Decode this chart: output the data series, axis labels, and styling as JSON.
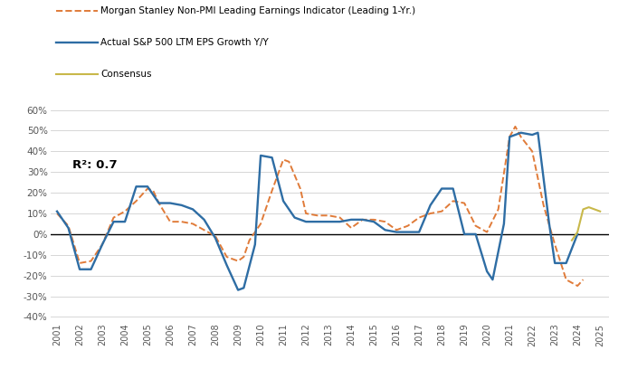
{
  "title": "",
  "legend_ms": "Morgan Stanley Non-PMI Leading Earnings Indicator (Leading 1-Yr.)",
  "legend_sp": "Actual S&P 500 LTM EPS Growth Y/Y",
  "legend_cons": "Consensus",
  "r2_label": "R²: 0.7",
  "ms_x": [
    2001,
    2001.5,
    2002,
    2002.5,
    2003,
    2003.5,
    2004,
    2004.5,
    2005,
    2005.25,
    2005.5,
    2006,
    2006.5,
    2007,
    2007.5,
    2008,
    2008.5,
    2009,
    2009.25,
    2009.5,
    2010,
    2010.5,
    2011,
    2011.25,
    2011.75,
    2012,
    2012.5,
    2013,
    2013.5,
    2014,
    2014.5,
    2015,
    2015.5,
    2016,
    2016.5,
    2017,
    2017.5,
    2018,
    2018.5,
    2019,
    2019.5,
    2020,
    2020.5,
    2021,
    2021.25,
    2021.5,
    2022,
    2022.5,
    2023,
    2023.5,
    2024,
    2024.25
  ],
  "ms_y": [
    10,
    4,
    -14,
    -13,
    -5,
    8,
    11,
    16,
    22,
    21,
    15,
    6,
    6,
    5,
    2,
    -1,
    -11,
    -13,
    -11,
    -3,
    5,
    21,
    36,
    35,
    22,
    10,
    9,
    9,
    8,
    3,
    7,
    7,
    6,
    2,
    4,
    8,
    10,
    11,
    16,
    15,
    4,
    1,
    12,
    47,
    52,
    47,
    40,
    14,
    -5,
    -22,
    -25,
    -22
  ],
  "sp_x": [
    2001,
    2001.5,
    2002,
    2002.5,
    2003,
    2003.5,
    2004,
    2004.5,
    2005,
    2005.5,
    2006,
    2006.5,
    2007,
    2007.5,
    2008,
    2008.5,
    2009,
    2009.25,
    2009.75,
    2010,
    2010.5,
    2011,
    2011.5,
    2012,
    2012.5,
    2013,
    2013.5,
    2014,
    2014.5,
    2015,
    2015.5,
    2016,
    2016.5,
    2017,
    2017.5,
    2018,
    2018.5,
    2019,
    2019.5,
    2020,
    2020.25,
    2020.75,
    2021,
    2021.5,
    2022,
    2022.25,
    2022.75,
    2023,
    2023.5,
    2024
  ],
  "sp_y": [
    11,
    3,
    -17,
    -17,
    -5,
    6,
    6,
    23,
    23,
    15,
    15,
    14,
    12,
    7,
    -2,
    -15,
    -27,
    -26,
    -5,
    38,
    37,
    16,
    8,
    6,
    6,
    6,
    6,
    7,
    7,
    6,
    2,
    1,
    1,
    1,
    14,
    22,
    22,
    0,
    0,
    -18,
    -22,
    5,
    47,
    49,
    48,
    49,
    5,
    -14,
    -14,
    0
  ],
  "cons_x": [
    2023.75,
    2024,
    2024.25,
    2024.5,
    2024.75,
    2025
  ],
  "cons_y": [
    -3,
    1,
    12,
    13,
    12,
    11
  ],
  "ms_color": "#E07B39",
  "sp_color": "#2E6DA4",
  "cons_color": "#C8B84A",
  "ylim": [
    -42,
    65
  ],
  "yticks": [
    -40,
    -30,
    -20,
    -10,
    0,
    10,
    20,
    30,
    40,
    50,
    60
  ],
  "xlim": [
    2000.7,
    2025.4
  ],
  "xticks": [
    2001,
    2002,
    2003,
    2004,
    2005,
    2006,
    2007,
    2008,
    2009,
    2010,
    2011,
    2012,
    2013,
    2014,
    2015,
    2016,
    2017,
    2018,
    2019,
    2020,
    2021,
    2022,
    2023,
    2024,
    2025
  ],
  "background_color": "#FFFFFF",
  "grid_color": "#D0D0D0"
}
